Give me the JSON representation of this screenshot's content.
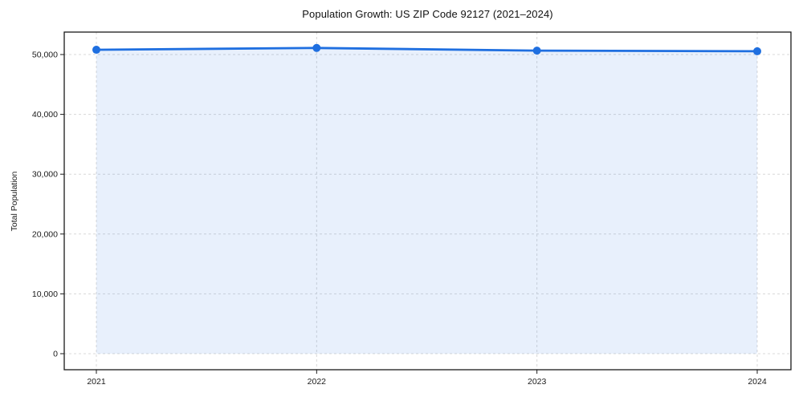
{
  "figure": {
    "title": "Population Growth: US ZIP Code 92127 (2021–2024)",
    "ylabel": "Total Population"
  },
  "chart_data": {
    "type": "line",
    "title": "Population Growth: US ZIP Code 92127 (2021–2024)",
    "xlabel": "",
    "ylabel": "Total Population",
    "x": [
      2021,
      2022,
      2023,
      2024
    ],
    "xticklabels": [
      "2021",
      "2022",
      "2023",
      "2024"
    ],
    "series": [
      {
        "name": "Total Population",
        "values": [
          50800,
          51100,
          50650,
          50550
        ]
      }
    ],
    "yticks": [
      0,
      10000,
      20000,
      30000,
      40000,
      50000
    ],
    "ytick_labels": [
      "0",
      "10,000",
      "20,000",
      "30,000",
      "40,000",
      "50,000"
    ],
    "ylim": [
      -3000,
      53800
    ],
    "grid": true,
    "grid_style": "dashed",
    "area_fill": true,
    "legend_position": "none",
    "marker": "circle",
    "colors": {
      "line": "#1f6fe0",
      "marker": "#1f6fe0",
      "fill": "rgba(31,111,224,0.10)",
      "grid": "#d8d8d8",
      "axis": "#1a1a1a",
      "text": "#1a1a1a",
      "background": "#ffffff"
    }
  }
}
